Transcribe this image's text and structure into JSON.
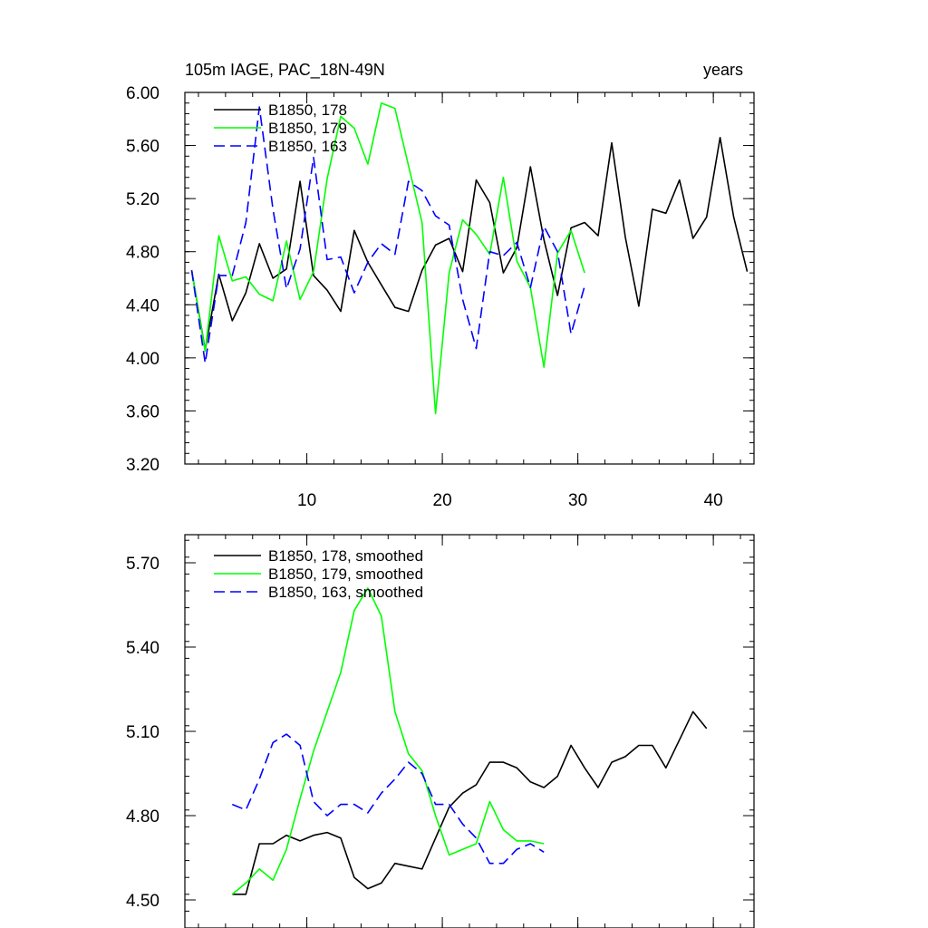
{
  "chart_data": [
    {
      "type": "line",
      "title_left": "105m IAGE, PAC_18N-49N",
      "title_right": "years",
      "xlim": [
        1,
        43
      ],
      "ylim": [
        3.2,
        6.0
      ],
      "xticks": [
        10,
        20,
        30,
        40
      ],
      "xtick_labels": [
        "10",
        "20",
        "30",
        "40"
      ],
      "yticks": [
        3.2,
        3.6,
        4.0,
        4.4,
        4.8,
        5.2,
        5.6,
        6.0
      ],
      "ytick_labels": [
        "3.20",
        "3.60",
        "4.00",
        "4.40",
        "4.80",
        "5.20",
        "5.60",
        "6.00"
      ],
      "series": [
        {
          "name": "B1850, 178",
          "color": "#000000",
          "dash": "solid",
          "x": [
            1.5,
            2.5,
            3.5,
            4.5,
            5.5,
            6.5,
            7.5,
            8.5,
            9.5,
            10.5,
            11.5,
            12.5,
            13.5,
            14.5,
            15.5,
            16.5,
            17.5,
            18.5,
            19.5,
            20.5,
            21.5,
            22.5,
            23.5,
            24.5,
            25.5,
            26.5,
            27.5,
            28.5,
            29.5,
            30.5,
            31.5,
            32.5,
            33.5,
            34.5,
            35.5,
            36.5,
            37.5,
            38.5,
            39.5,
            40.5,
            41.5,
            42.5
          ],
          "y": [
            4.66,
            4.06,
            4.63,
            4.28,
            4.49,
            4.86,
            4.6,
            4.67,
            5.33,
            4.62,
            4.51,
            4.35,
            4.96,
            4.72,
            4.55,
            4.38,
            4.35,
            4.66,
            4.85,
            4.9,
            4.65,
            5.34,
            5.17,
            4.64,
            4.83,
            5.44,
            4.89,
            4.47,
            4.98,
            5.02,
            4.92,
            5.62,
            4.91,
            4.39,
            5.12,
            5.09,
            5.34,
            4.9,
            5.06,
            5.66,
            5.06,
            4.65
          ]
        },
        {
          "name": "B1850, 179",
          "color": "#00ff00",
          "dash": "solid",
          "x": [
            1.5,
            2.5,
            3.5,
            4.5,
            5.5,
            6.5,
            7.5,
            8.5,
            9.5,
            10.5,
            11.5,
            12.5,
            13.5,
            14.5,
            15.5,
            16.5,
            17.5,
            18.5,
            19.5,
            20.5,
            21.5,
            22.5,
            23.5,
            24.5,
            25.5,
            26.5,
            27.5,
            28.5,
            29.5,
            30.5
          ],
          "y": [
            4.66,
            4.05,
            4.92,
            4.58,
            4.61,
            4.48,
            4.43,
            4.88,
            4.44,
            4.65,
            5.35,
            5.82,
            5.73,
            5.46,
            5.92,
            5.88,
            5.45,
            5.02,
            3.58,
            4.64,
            5.04,
            4.93,
            4.78,
            5.36,
            4.73,
            4.53,
            3.93,
            4.79,
            4.96,
            4.64
          ]
        },
        {
          "name": "B1850, 163",
          "color": "#0000ff",
          "dash": "dashed",
          "x": [
            1.5,
            2.5,
            3.5,
            4.5,
            5.5,
            6.5,
            7.5,
            8.5,
            9.5,
            10.5,
            11.5,
            12.5,
            13.5,
            14.5,
            15.5,
            16.5,
            17.5,
            18.5,
            19.5,
            20.5,
            21.5,
            22.5,
            23.5,
            24.5,
            25.5,
            26.5,
            27.5,
            28.5,
            29.5,
            30.5
          ],
          "y": [
            4.66,
            3.96,
            4.62,
            4.62,
            5.02,
            5.89,
            5.12,
            4.52,
            4.82,
            5.51,
            4.74,
            4.76,
            4.49,
            4.72,
            4.86,
            4.78,
            5.33,
            5.26,
            5.07,
            5.0,
            4.44,
            4.07,
            4.8,
            4.77,
            4.87,
            4.53,
            4.99,
            4.8,
            4.18,
            4.54
          ]
        }
      ]
    },
    {
      "type": "line",
      "xlim": [
        1,
        43
      ],
      "ylim": [
        4.4,
        5.8
      ],
      "yticks": [
        4.5,
        4.8,
        5.1,
        5.4,
        5.7
      ],
      "ytick_labels": [
        "4.50",
        "4.80",
        "5.10",
        "5.40",
        "5.70"
      ],
      "xticks": [
        10,
        20,
        30,
        40
      ],
      "series": [
        {
          "name": "B1850, 178, smoothed",
          "color": "#000000",
          "dash": "solid",
          "x": [
            4.5,
            5.5,
            6.5,
            7.5,
            8.5,
            9.5,
            10.5,
            11.5,
            12.5,
            13.5,
            14.5,
            15.5,
            16.5,
            17.5,
            18.5,
            19.5,
            20.5,
            21.5,
            22.5,
            23.5,
            24.5,
            25.5,
            26.5,
            27.5,
            28.5,
            29.5,
            30.5,
            31.5,
            32.5,
            33.5,
            34.5,
            35.5,
            36.5,
            37.5,
            38.5,
            39.5
          ],
          "y": [
            4.52,
            4.52,
            4.7,
            4.7,
            4.73,
            4.71,
            4.73,
            4.74,
            4.72,
            4.58,
            4.54,
            4.56,
            4.63,
            4.62,
            4.61,
            4.72,
            4.83,
            4.88,
            4.91,
            4.99,
            4.99,
            4.97,
            4.92,
            4.9,
            4.94,
            5.05,
            4.97,
            4.9,
            4.99,
            5.01,
            5.05,
            5.05,
            4.97,
            5.07,
            5.17,
            5.11
          ]
        },
        {
          "name": "B1850, 179, smoothed",
          "color": "#00ff00",
          "dash": "solid",
          "x": [
            4.5,
            5.5,
            6.5,
            7.5,
            8.5,
            9.5,
            10.5,
            11.5,
            12.5,
            13.5,
            14.5,
            15.5,
            16.5,
            17.5,
            18.5,
            19.5,
            20.5,
            21.5,
            22.5,
            23.5,
            24.5,
            25.5,
            26.5,
            27.5
          ],
          "y": [
            4.52,
            4.56,
            4.61,
            4.57,
            4.68,
            4.86,
            5.03,
            5.17,
            5.31,
            5.53,
            5.61,
            5.51,
            5.17,
            5.02,
            4.96,
            4.8,
            4.66,
            4.68,
            4.7,
            4.85,
            4.75,
            4.71,
            4.71,
            4.7
          ]
        },
        {
          "name": "B1850, 163, smoothed",
          "color": "#0000ff",
          "dash": "dashed",
          "x": [
            4.5,
            5.5,
            6.5,
            7.5,
            8.5,
            9.5,
            10.5,
            11.5,
            12.5,
            13.5,
            14.5,
            15.5,
            16.5,
            17.5,
            18.5,
            19.5,
            20.5,
            21.5,
            22.5,
            23.5,
            24.5,
            25.5,
            26.5,
            27.5
          ],
          "y": [
            4.84,
            4.82,
            4.93,
            5.06,
            5.09,
            5.05,
            4.85,
            4.8,
            4.84,
            4.84,
            4.81,
            4.88,
            4.93,
            4.99,
            4.95,
            4.84,
            4.84,
            4.77,
            4.72,
            4.63,
            4.63,
            4.68,
            4.7,
            4.67
          ]
        }
      ]
    }
  ]
}
